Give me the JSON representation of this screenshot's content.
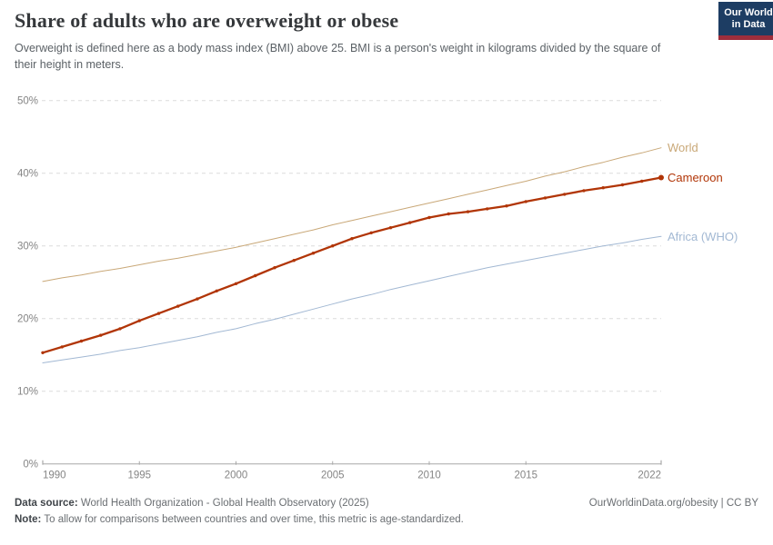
{
  "header": {
    "title": "Share of adults who are overweight or obese",
    "subtitle": "Overweight is defined here as a body mass index (BMI) above 25. BMI is a person's weight in kilograms divided by the square of their height in meters.",
    "logo": {
      "line1": "Our World",
      "line2": "in Data",
      "bg_color": "#1d3d63",
      "stripe_color": "#9e2e3c"
    }
  },
  "chart_data": {
    "type": "line",
    "title": "Share of adults who are overweight or obese",
    "xlabel": "",
    "ylabel": "",
    "x": [
      1990,
      1991,
      1992,
      1993,
      1994,
      1995,
      1996,
      1997,
      1998,
      1999,
      2000,
      2001,
      2002,
      2003,
      2004,
      2005,
      2006,
      2007,
      2008,
      2009,
      2010,
      2011,
      2012,
      2013,
      2014,
      2015,
      2016,
      2017,
      2018,
      2019,
      2020,
      2021,
      2022
    ],
    "series": [
      {
        "name": "World",
        "color": "#C9A878",
        "values": [
          25.1,
          25.6,
          26.0,
          26.5,
          26.9,
          27.4,
          27.9,
          28.3,
          28.8,
          29.3,
          29.8,
          30.4,
          31.0,
          31.6,
          32.2,
          32.9,
          33.5,
          34.1,
          34.7,
          35.3,
          35.9,
          36.5,
          37.1,
          37.7,
          38.3,
          38.9,
          39.6,
          40.2,
          40.9,
          41.5,
          42.2,
          42.8,
          43.5
        ],
        "markers": false,
        "line_width": 1
      },
      {
        "name": "Cameroon",
        "color": "#B13507",
        "values": [
          15.3,
          16.1,
          16.9,
          17.7,
          18.6,
          19.7,
          20.7,
          21.7,
          22.7,
          23.8,
          24.8,
          25.9,
          27.0,
          28.0,
          29.0,
          30.0,
          31.0,
          31.8,
          32.5,
          33.2,
          33.9,
          34.4,
          34.7,
          35.1,
          35.5,
          36.1,
          36.6,
          37.1,
          37.6,
          38.0,
          38.4,
          38.9,
          39.4
        ],
        "markers": true,
        "line_width": 2.3
      },
      {
        "name": "Africa (WHO)",
        "color": "#A2B8D3",
        "values": [
          13.9,
          14.3,
          14.7,
          15.1,
          15.6,
          16.0,
          16.5,
          17.0,
          17.5,
          18.1,
          18.6,
          19.3,
          19.9,
          20.6,
          21.3,
          22.0,
          22.7,
          23.3,
          24.0,
          24.6,
          25.2,
          25.8,
          26.4,
          27.0,
          27.5,
          28.0,
          28.5,
          29.0,
          29.5,
          30.0,
          30.4,
          30.9,
          31.3
        ],
        "markers": false,
        "line_width": 1
      }
    ],
    "ylim": [
      0,
      50
    ],
    "yticks": [
      0,
      10,
      20,
      30,
      40,
      50
    ],
    "ytick_suffix": "%",
    "xticks": [
      1990,
      1995,
      2000,
      2005,
      2010,
      2015,
      2022
    ],
    "grid": "horizontal-dashed",
    "legend_position": "right-of-line-end-labels",
    "grid_color": "#dcdcdc",
    "axis_color": "#a8a8a8",
    "tick_label_color": "#858585"
  },
  "footer": {
    "data_source_label": "Data source:",
    "data_source_text": " World Health Organization - Global Health Observatory (2025)",
    "link": "OurWorldinData.org/obesity | CC BY",
    "note_label": "Note:",
    "note_text": " To allow for comparisons between countries and over time, this metric is age-standardized."
  }
}
